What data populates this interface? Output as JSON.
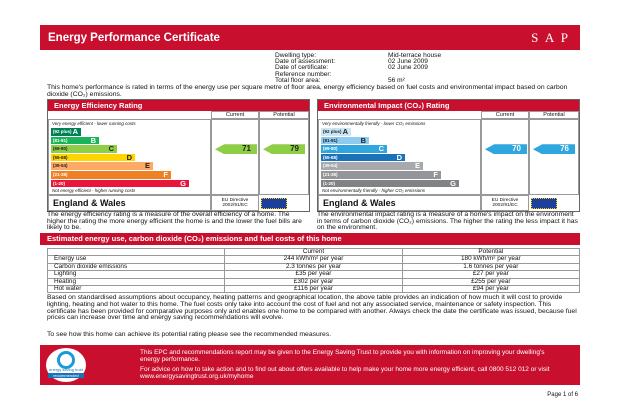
{
  "header": {
    "title": "Energy Performance Certificate",
    "logo": "S A P"
  },
  "property": {
    "rows": [
      {
        "label": "Dwelling type:",
        "value": "Mid-terrace house"
      },
      {
        "label": "Date of assessment:",
        "value": "02 June 2009"
      },
      {
        "label": "Date of certificate:",
        "value": "02 June 2009"
      },
      {
        "label": "Reference number:"
      },
      {
        "label": "Total floor area:",
        "value": "56 m²"
      }
    ]
  },
  "intro": "This home's performance is rated in terms of the energy use per square metre of floor area, energy efficiency based on fuel costs and environmental impact based on carbon dioxide (CO₂) emissions.",
  "ratings": [
    {
      "title": "Energy Efficiency Rating",
      "columns": [
        "Current",
        "Potential"
      ],
      "top_note": "Very energy efficient - lower running costs",
      "bottom_note": "Not energy efficient - higher running costs",
      "bands": [
        {
          "range": "(92 plus)",
          "letter": "A",
          "color": "#008054"
        },
        {
          "range": "(81-91)",
          "letter": "B",
          "color": "#19b459"
        },
        {
          "range": "(69-80)",
          "letter": "C",
          "color": "#8dce46"
        },
        {
          "range": "(55-68)",
          "letter": "D",
          "color": "#ffd500"
        },
        {
          "range": "(39-54)",
          "letter": "E",
          "color": "#fcaa65"
        },
        {
          "range": "(21-38)",
          "letter": "F",
          "color": "#ef8023"
        },
        {
          "range": "(1-20)",
          "letter": "G",
          "color": "#e9153b"
        }
      ],
      "current": 71,
      "potential": 79,
      "region": "England & Wales",
      "directive": "EU Directive 2002/91/EC",
      "caption": "The energy efficiency rating is a measure of the overall efficiency of a home. The higher the rating the more energy efficient the home is and the lower the fuel bills are likely to be."
    },
    {
      "title": "Environmental Impact (CO₂) Rating",
      "columns": [
        "Current",
        "Potential"
      ],
      "top_note": "Very environmentally friendly - lower CO₂ emissions",
      "bottom_note": "Not environmentally friendly - higher CO₂ emissions",
      "bands": [
        {
          "range": "(92 plus)",
          "letter": "A",
          "color": "#cde6f6"
        },
        {
          "range": "(81-91)",
          "letter": "B",
          "color": "#8fcbef"
        },
        {
          "range": "(69-80)",
          "letter": "C",
          "color": "#2fa6dd"
        },
        {
          "range": "(55-68)",
          "letter": "D",
          "color": "#1a73b8"
        },
        {
          "range": "(39-54)",
          "letter": "E",
          "color": "#a7a9ac"
        },
        {
          "range": "(21-38)",
          "letter": "F",
          "color": "#939598"
        },
        {
          "range": "(1-20)",
          "letter": "G",
          "color": "#808285"
        }
      ],
      "current": 70,
      "potential": 76,
      "region": "England & Wales",
      "directive": "EU Directive 2002/91/EC",
      "caption": "The environmental impact rating is a measure of a home's impact on the environment in terms of carbon dioxide (CO₂) emissions. The higher the rating the less impact it has on the environment."
    }
  ],
  "estimates": {
    "title": "Estimated energy use, carbon dioxide (CO₂) emissions and fuel costs of this home",
    "columns": [
      "Current",
      "Potential"
    ],
    "rows": [
      [
        "Energy use",
        "244 kWh/m² per year",
        "180 kWh/m² per year"
      ],
      [
        "Carbon dioxide emissions",
        "2.3 tonnes per year",
        "1.6 tonnes per year"
      ],
      [
        "Lighting",
        "£35 per year",
        "£27 per year"
      ],
      [
        "Heating",
        "£302 per year",
        "£255 per year"
      ],
      [
        "Hot water",
        "£116 per year",
        "£94 per year"
      ]
    ]
  },
  "notes": [
    "Based on standardised assumptions about occupancy, heating patterns and geographical location, the above table provides an indication of how much it will cost to provide lighting, heating and hot water to this home. The fuel costs only take into account the cost of fuel and not any associated service, maintenance or safety inspection. This certificate has been provided for comparative purposes only and enables one home to be compared with another. Always check the date the certificate was issued, because fuel prices can increase over time and energy saving recommendations will evolve.",
    "To see how this home can achieve its potential rating please see the recommended measures."
  ],
  "footer": {
    "logo": [
      "energy saving trust",
      "recommended"
    ],
    "lines": [
      "This EPC and recommendations report may be given to the Energy Saving Trust to provide you with information on improving your dwelling's energy performance.",
      "For advice on how to take action and to find out about offers available to help make your home more energy efficient, call 0800 512 012 or visit www.energysavingtrust.org.uk/myhome"
    ],
    "page": "Page 1 of 6"
  }
}
